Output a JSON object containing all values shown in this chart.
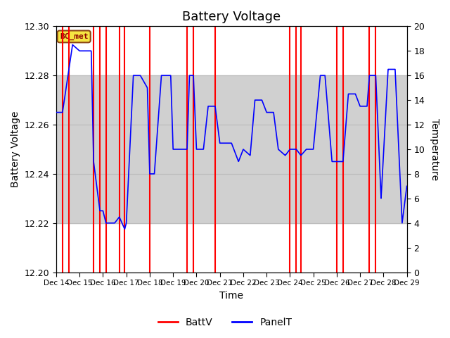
{
  "title": "Battery Voltage",
  "xlabel": "Time",
  "ylabel_left": "Battery Voltage",
  "ylabel_right": "Temperature",
  "ylim_left": [
    12.2,
    12.3
  ],
  "ylim_right": [
    0,
    20
  ],
  "yticks_left": [
    12.2,
    12.22,
    12.24,
    12.26,
    12.28,
    12.3
  ],
  "yticks_right": [
    0,
    2,
    4,
    6,
    8,
    10,
    12,
    14,
    16,
    18,
    20
  ],
  "xtick_labels": [
    "Dec 14",
    "Dec 15",
    "Dec 16",
    "Dec 17",
    "Dec 18",
    "Dec 19",
    "Dec 20",
    "Dec 21",
    "Dec 22",
    "Dec 23",
    "Dec 24",
    "Dec 25",
    "Dec 26",
    "Dec 27",
    "Dec 28",
    "Dec 29"
  ],
  "annotation_text": "BC_met",
  "shaded_region_low": 12.22,
  "shaded_region_high": 12.28,
  "red_line_color": "#ff0000",
  "blue_line_color": "#0000ff",
  "legend_items": [
    "BattV",
    "PanelT"
  ],
  "red_vlines": [
    0.27,
    0.54,
    1.6,
    1.87,
    2.13,
    2.7,
    2.93,
    4.0,
    5.6,
    5.87,
    6.8,
    10.0,
    10.27,
    10.47,
    12.0,
    12.27,
    13.4,
    13.67
  ],
  "panel_temp_x": [
    0,
    0.27,
    0.7,
    1.0,
    1.5,
    1.6,
    1.87,
    2.0,
    2.13,
    2.5,
    2.7,
    2.93,
    3.0,
    3.3,
    3.6,
    3.9,
    4.0,
    4.2,
    4.5,
    4.7,
    4.9,
    5.0,
    5.3,
    5.6,
    5.7,
    5.87,
    6.0,
    6.3,
    6.5,
    6.8,
    7.0,
    7.3,
    7.5,
    7.8,
    8.0,
    8.3,
    8.5,
    8.8,
    9.0,
    9.3,
    9.5,
    9.8,
    10.0,
    10.27,
    10.47,
    10.7,
    11.0,
    11.3,
    11.5,
    11.8,
    12.0,
    12.27,
    12.5,
    12.8,
    13.0,
    13.3,
    13.4,
    13.67,
    13.9,
    14.2,
    14.5,
    14.8,
    15.0
  ],
  "panel_temp_y": [
    13,
    13,
    18.5,
    18,
    18,
    9,
    5,
    5,
    4,
    4,
    4.5,
    3.5,
    4,
    16,
    16,
    15,
    8,
    8,
    16,
    16,
    16,
    10,
    10,
    10,
    16,
    16,
    10,
    10,
    13.5,
    13.5,
    10.5,
    10.5,
    10.5,
    9,
    10,
    9.5,
    14,
    14,
    13,
    13,
    10,
    9.5,
    10,
    10,
    9.5,
    10,
    10,
    16,
    16,
    9,
    9,
    9,
    14.5,
    14.5,
    13.5,
    13.5,
    16,
    16,
    6,
    16.5,
    16.5,
    4,
    7
  ]
}
